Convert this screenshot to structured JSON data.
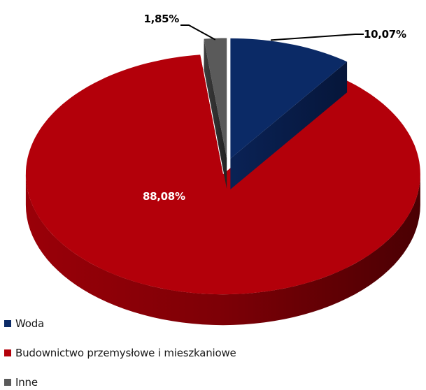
{
  "chart_data": {
    "type": "pie",
    "three_d": true,
    "exploded": true,
    "legend_position": "bottom-left",
    "slices": [
      {
        "name": "Woda",
        "value": 10.07,
        "label": "10,07%",
        "color": "#0b2a66"
      },
      {
        "name": "Budownictwo przemysłowe i mieszkaniowe",
        "value": 88.08,
        "label": "88,08%",
        "color": "#b3000a"
      },
      {
        "name": "Inne",
        "value": 1.85,
        "label": "1,85%",
        "color": "#5a5a5a"
      }
    ]
  }
}
